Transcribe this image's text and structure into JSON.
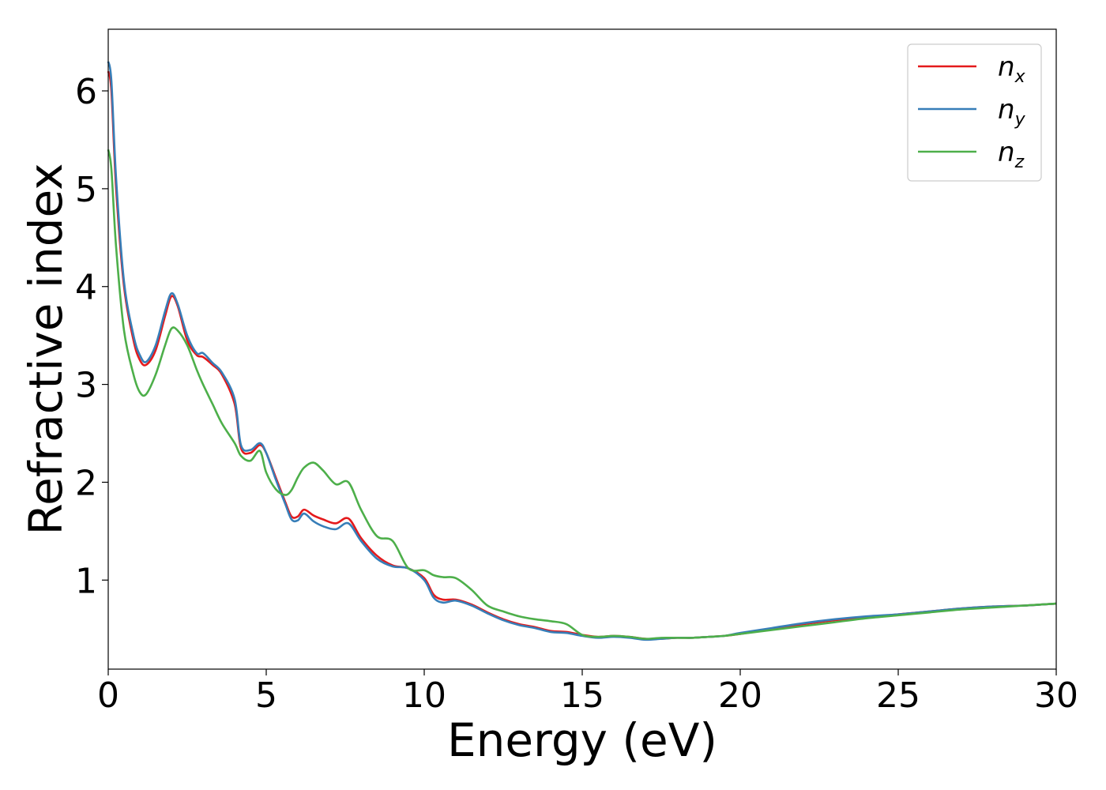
{
  "chart_data": {
    "type": "line",
    "xlabel": "Energy (eV)",
    "ylabel": "Refractive index",
    "xlim": [
      0,
      30
    ],
    "ylim": [
      0.09,
      6.63
    ],
    "grid": false,
    "legend_position": "top-right",
    "x_ticks": [
      0,
      5,
      10,
      15,
      20,
      25,
      30
    ],
    "y_ticks": [
      1,
      2,
      3,
      4,
      5,
      6
    ],
    "series": [
      {
        "name": "n_x",
        "label_main": "n",
        "label_sub": "x",
        "color": "#e41a1c",
        "x": [
          0,
          0.1,
          0.25,
          0.5,
          0.8,
          1.0,
          1.2,
          1.5,
          1.8,
          2.0,
          2.2,
          2.5,
          2.8,
          3.0,
          3.3,
          3.6,
          4.0,
          4.2,
          4.5,
          4.8,
          5.0,
          5.3,
          5.6,
          5.8,
          6.0,
          6.2,
          6.5,
          6.8,
          7.2,
          7.6,
          8.0,
          8.5,
          9.0,
          9.5,
          10.0,
          10.3,
          10.6,
          11.0,
          11.5,
          12.0,
          12.5,
          13.0,
          13.5,
          14.0,
          14.5,
          15.0,
          15.5,
          16.0,
          16.5,
          17.0,
          17.5,
          18.0,
          18.5,
          19.0,
          19.5,
          20.0,
          21.0,
          22.0,
          23.0,
          24.0,
          25.0,
          26.0,
          27.0,
          28.0,
          29.0,
          30.0
        ],
        "y": [
          6.2,
          6.0,
          5.0,
          4.0,
          3.45,
          3.25,
          3.2,
          3.35,
          3.7,
          3.9,
          3.8,
          3.45,
          3.3,
          3.28,
          3.2,
          3.1,
          2.8,
          2.35,
          2.3,
          2.38,
          2.3,
          2.05,
          1.8,
          1.65,
          1.65,
          1.72,
          1.66,
          1.62,
          1.58,
          1.63,
          1.43,
          1.25,
          1.15,
          1.12,
          1.02,
          0.85,
          0.8,
          0.8,
          0.75,
          0.67,
          0.6,
          0.55,
          0.52,
          0.48,
          0.47,
          0.44,
          0.42,
          0.43,
          0.42,
          0.4,
          0.4,
          0.41,
          0.41,
          0.42,
          0.43,
          0.45,
          0.5,
          0.55,
          0.59,
          0.62,
          0.65,
          0.68,
          0.71,
          0.73,
          0.74,
          0.76
        ]
      },
      {
        "name": "n_y",
        "label_main": "n",
        "label_sub": "y",
        "color": "#377eb8",
        "x": [
          0,
          0.1,
          0.25,
          0.5,
          0.8,
          1.0,
          1.2,
          1.5,
          1.8,
          2.0,
          2.2,
          2.5,
          2.8,
          3.0,
          3.3,
          3.6,
          4.0,
          4.2,
          4.5,
          4.8,
          5.0,
          5.3,
          5.6,
          5.8,
          6.0,
          6.2,
          6.5,
          6.8,
          7.2,
          7.6,
          8.0,
          8.5,
          9.0,
          9.5,
          10.0,
          10.3,
          10.6,
          11.0,
          11.5,
          12.0,
          12.5,
          13.0,
          13.5,
          14.0,
          14.5,
          15.0,
          15.5,
          16.0,
          16.5,
          17.0,
          17.5,
          18.0,
          18.5,
          19.0,
          19.5,
          20.0,
          21.0,
          22.0,
          23.0,
          24.0,
          25.0,
          26.0,
          27.0,
          28.0,
          29.0,
          30.0
        ],
        "y": [
          6.3,
          6.1,
          5.1,
          4.05,
          3.5,
          3.3,
          3.23,
          3.4,
          3.75,
          3.93,
          3.82,
          3.5,
          3.32,
          3.32,
          3.22,
          3.12,
          2.85,
          2.38,
          2.33,
          2.4,
          2.3,
          2.03,
          1.78,
          1.62,
          1.61,
          1.68,
          1.6,
          1.55,
          1.52,
          1.58,
          1.4,
          1.22,
          1.14,
          1.12,
          1.0,
          0.82,
          0.77,
          0.79,
          0.74,
          0.66,
          0.59,
          0.54,
          0.51,
          0.47,
          0.46,
          0.43,
          0.41,
          0.42,
          0.41,
          0.39,
          0.4,
          0.41,
          0.41,
          0.42,
          0.43,
          0.46,
          0.51,
          0.56,
          0.6,
          0.63,
          0.65,
          0.68,
          0.71,
          0.73,
          0.74,
          0.76
        ]
      },
      {
        "name": "n_z",
        "label_main": "n",
        "label_sub": "z",
        "color": "#4daf4a",
        "x": [
          0,
          0.1,
          0.25,
          0.5,
          0.8,
          1.0,
          1.2,
          1.5,
          1.8,
          2.0,
          2.2,
          2.5,
          2.8,
          3.0,
          3.3,
          3.6,
          4.0,
          4.2,
          4.5,
          4.8,
          5.0,
          5.3,
          5.6,
          5.8,
          6.0,
          6.2,
          6.5,
          6.8,
          7.2,
          7.6,
          8.0,
          8.5,
          9.0,
          9.5,
          10.0,
          10.3,
          10.6,
          11.0,
          11.5,
          12.0,
          12.5,
          13.0,
          13.5,
          14.0,
          14.5,
          15.0,
          15.5,
          16.0,
          16.5,
          17.0,
          17.5,
          18.0,
          18.5,
          19.0,
          19.5,
          20.0,
          21.0,
          22.0,
          23.0,
          24.0,
          25.0,
          26.0,
          27.0,
          28.0,
          29.0,
          30.0
        ],
        "y": [
          5.4,
          5.2,
          4.4,
          3.55,
          3.1,
          2.92,
          2.9,
          3.1,
          3.4,
          3.57,
          3.55,
          3.4,
          3.15,
          3.0,
          2.8,
          2.6,
          2.4,
          2.27,
          2.22,
          2.32,
          2.1,
          1.93,
          1.87,
          1.92,
          2.05,
          2.15,
          2.2,
          2.12,
          1.98,
          2.0,
          1.72,
          1.45,
          1.4,
          1.12,
          1.1,
          1.05,
          1.03,
          1.02,
          0.9,
          0.74,
          0.68,
          0.63,
          0.6,
          0.58,
          0.55,
          0.44,
          0.42,
          0.43,
          0.42,
          0.4,
          0.41,
          0.41,
          0.41,
          0.42,
          0.43,
          0.45,
          0.49,
          0.53,
          0.57,
          0.61,
          0.64,
          0.67,
          0.7,
          0.72,
          0.74,
          0.76
        ]
      }
    ]
  }
}
